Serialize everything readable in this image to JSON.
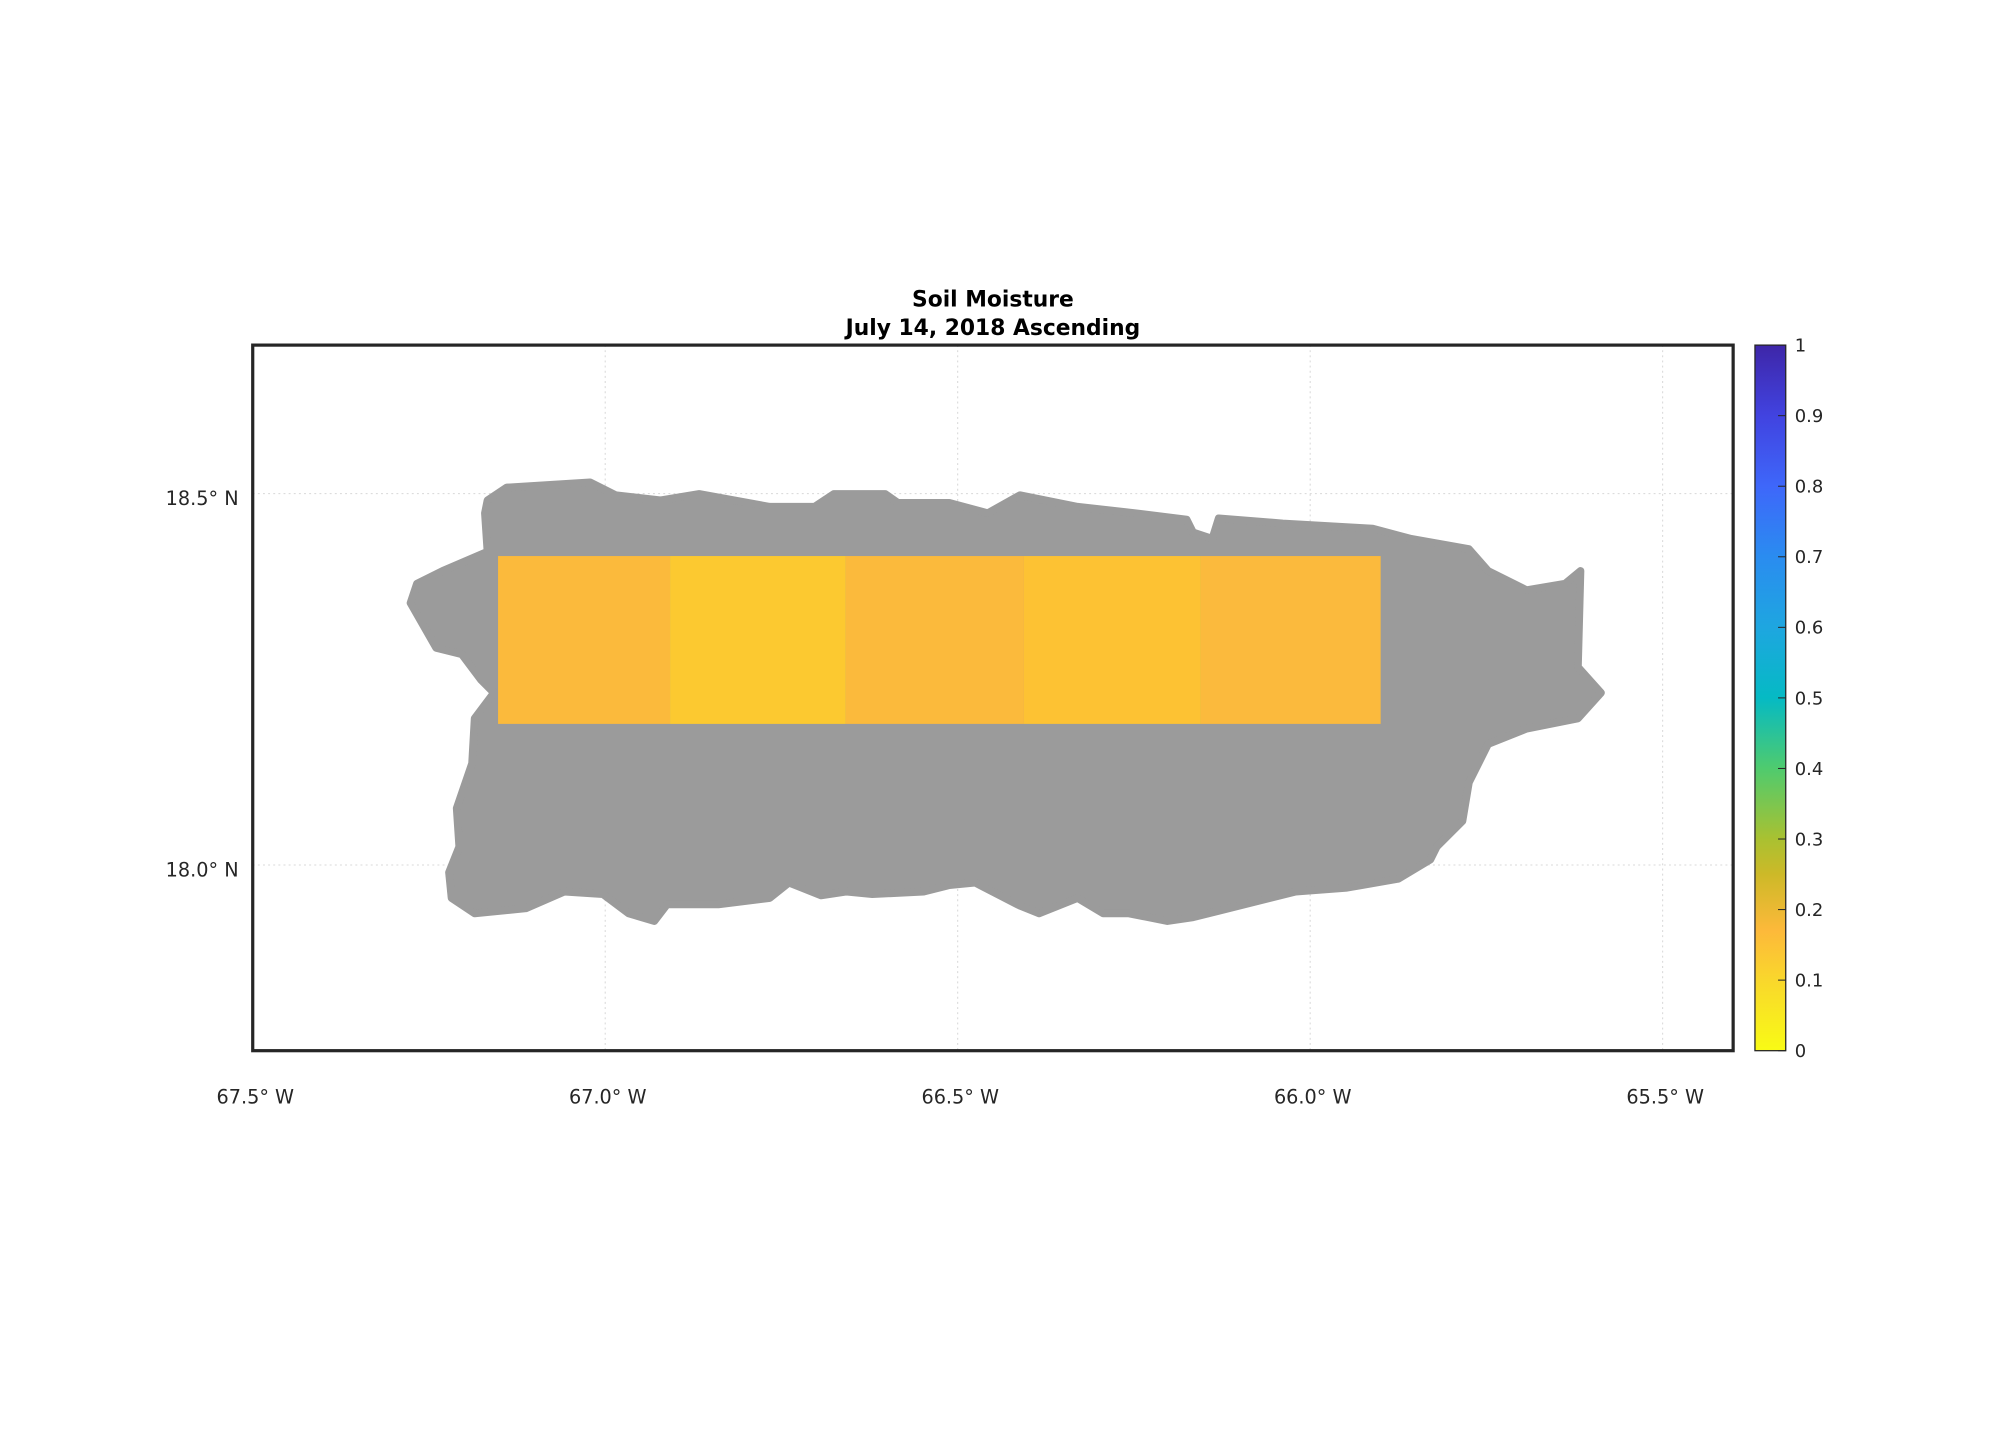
{
  "chart_data": {
    "type": "heatmap",
    "title": "Soil Moisture",
    "subtitle": "July 14, 2018 Ascending",
    "xlabel": "",
    "ylabel": "",
    "xlim": [
      -67.5,
      -65.4
    ],
    "ylim": [
      17.75,
      18.7
    ],
    "grid": true,
    "x_ticks": [
      {
        "value": -67.5,
        "label": "67.5° W"
      },
      {
        "value": -67.0,
        "label": "67.0° W"
      },
      {
        "value": -66.5,
        "label": "66.5° W"
      },
      {
        "value": -66.0,
        "label": "66.0° W"
      },
      {
        "value": -65.5,
        "label": "65.5° W"
      }
    ],
    "y_ticks": [
      {
        "value": 18.5,
        "label": "18.5° N"
      },
      {
        "value": 18.0,
        "label": "18.0° N"
      }
    ],
    "land_color": "#9b9b9b",
    "cells": [
      {
        "lon_min": -67.152,
        "lon_max": -66.908,
        "lat_min": 18.19,
        "lat_max": 18.416,
        "value": 0.16,
        "color": "#FBBA3C"
      },
      {
        "lon_min": -66.908,
        "lon_max": -66.659,
        "lat_min": 18.19,
        "lat_max": 18.416,
        "value": 0.12,
        "color": "#FCC930"
      },
      {
        "lon_min": -66.659,
        "lon_max": -66.406,
        "lat_min": 18.19,
        "lat_max": 18.416,
        "value": 0.16,
        "color": "#FBBA3C"
      },
      {
        "lon_min": -66.406,
        "lon_max": -66.155,
        "lat_min": 18.19,
        "lat_max": 18.416,
        "value": 0.14,
        "color": "#FDC233"
      },
      {
        "lon_min": -66.155,
        "lon_max": -65.9,
        "lat_min": 18.19,
        "lat_max": 18.416,
        "value": 0.165,
        "color": "#FBBA3D"
      }
    ],
    "colorbar": {
      "range": [
        0,
        1
      ],
      "position": "right",
      "ticks": [
        {
          "value": 0,
          "label": "0"
        },
        {
          "value": 0.1,
          "label": "0.1"
        },
        {
          "value": 0.2,
          "label": "0.2"
        },
        {
          "value": 0.3,
          "label": "0.3"
        },
        {
          "value": 0.4,
          "label": "0.4"
        },
        {
          "value": 0.5,
          "label": "0.5"
        },
        {
          "value": 0.6,
          "label": "0.6"
        },
        {
          "value": 0.7,
          "label": "0.7"
        },
        {
          "value": 0.8,
          "label": "0.8"
        },
        {
          "value": 0.9,
          "label": "0.9"
        },
        {
          "value": 1,
          "label": "1"
        }
      ],
      "colormap": [
        {
          "value": 0,
          "color": "#f9fb15"
        },
        {
          "value": 0.1,
          "color": "#f9d72c"
        },
        {
          "value": 0.17,
          "color": "#fdb93a"
        },
        {
          "value": 0.25,
          "color": "#cdb928"
        },
        {
          "value": 0.3,
          "color": "#a9c131"
        },
        {
          "value": 0.4,
          "color": "#4fcb6e"
        },
        {
          "value": 0.5,
          "color": "#05bac4"
        },
        {
          "value": 0.6,
          "color": "#1ea6e0"
        },
        {
          "value": 0.7,
          "color": "#2a8cf0"
        },
        {
          "value": 0.8,
          "color": "#3e67fa"
        },
        {
          "value": 0.9,
          "color": "#4143e0"
        },
        {
          "value": 1,
          "color": "#3e26a8"
        }
      ]
    }
  }
}
